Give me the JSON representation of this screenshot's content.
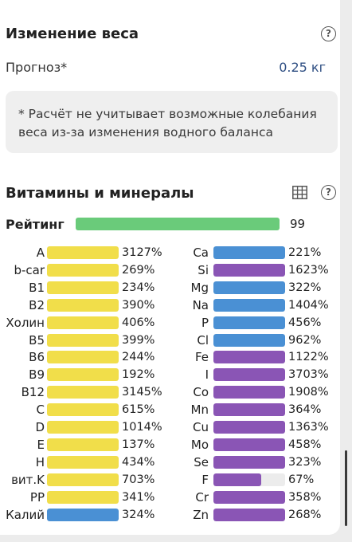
{
  "weight": {
    "title": "Изменение веса",
    "forecast_label": "Прогноз*",
    "forecast_value": "0.25 кг",
    "note": "* Расчёт не учитывает возможные колебания веса из-за изменения водного баланса"
  },
  "vitamins": {
    "title": "Витамины и минералы",
    "rating_label": "Рейтинг",
    "rating_value": "99",
    "rating_color": "#6acb7a"
  },
  "icons": {
    "help": "help-circle-icon",
    "table": "table-icon"
  },
  "colors": {
    "yellow": "#f1de4a",
    "blue": "#4a90d4",
    "purple": "#8a55b5",
    "track": "#ececec"
  },
  "left_items": [
    {
      "label": "A",
      "value": "3127%",
      "fill": 1.0,
      "color": "yellow"
    },
    {
      "label": "b-car",
      "value": "269%",
      "fill": 1.0,
      "color": "yellow"
    },
    {
      "label": "B1",
      "value": "234%",
      "fill": 1.0,
      "color": "yellow"
    },
    {
      "label": "B2",
      "value": "390%",
      "fill": 1.0,
      "color": "yellow"
    },
    {
      "label": "Холин",
      "value": "406%",
      "fill": 1.0,
      "color": "yellow"
    },
    {
      "label": "B5",
      "value": "399%",
      "fill": 1.0,
      "color": "yellow"
    },
    {
      "label": "B6",
      "value": "244%",
      "fill": 1.0,
      "color": "yellow"
    },
    {
      "label": "B9",
      "value": "192%",
      "fill": 1.0,
      "color": "yellow"
    },
    {
      "label": "B12",
      "value": "3145%",
      "fill": 1.0,
      "color": "yellow"
    },
    {
      "label": "C",
      "value": "615%",
      "fill": 1.0,
      "color": "yellow"
    },
    {
      "label": "D",
      "value": "1014%",
      "fill": 1.0,
      "color": "yellow"
    },
    {
      "label": "E",
      "value": "137%",
      "fill": 1.0,
      "color": "yellow"
    },
    {
      "label": "H",
      "value": "434%",
      "fill": 1.0,
      "color": "yellow"
    },
    {
      "label": "вит.K",
      "value": "703%",
      "fill": 1.0,
      "color": "yellow"
    },
    {
      "label": "PP",
      "value": "341%",
      "fill": 1.0,
      "color": "yellow"
    },
    {
      "label": "Калий",
      "value": "324%",
      "fill": 1.0,
      "color": "blue"
    }
  ],
  "right_items": [
    {
      "label": "Ca",
      "value": "221%",
      "fill": 1.0,
      "color": "blue"
    },
    {
      "label": "Si",
      "value": "1623%",
      "fill": 1.0,
      "color": "purple"
    },
    {
      "label": "Mg",
      "value": "322%",
      "fill": 1.0,
      "color": "blue"
    },
    {
      "label": "Na",
      "value": "1404%",
      "fill": 1.0,
      "color": "blue"
    },
    {
      "label": "P",
      "value": "456%",
      "fill": 1.0,
      "color": "blue"
    },
    {
      "label": "Cl",
      "value": "962%",
      "fill": 1.0,
      "color": "blue"
    },
    {
      "label": "Fe",
      "value": "1122%",
      "fill": 1.0,
      "color": "purple"
    },
    {
      "label": "I",
      "value": "3703%",
      "fill": 1.0,
      "color": "purple"
    },
    {
      "label": "Co",
      "value": "1908%",
      "fill": 1.0,
      "color": "purple"
    },
    {
      "label": "Mn",
      "value": "364%",
      "fill": 1.0,
      "color": "purple"
    },
    {
      "label": "Cu",
      "value": "1363%",
      "fill": 1.0,
      "color": "purple"
    },
    {
      "label": "Mo",
      "value": "458%",
      "fill": 1.0,
      "color": "purple"
    },
    {
      "label": "Se",
      "value": "323%",
      "fill": 1.0,
      "color": "purple"
    },
    {
      "label": "F",
      "value": "67%",
      "fill": 0.67,
      "color": "purple"
    },
    {
      "label": "Cr",
      "value": "358%",
      "fill": 1.0,
      "color": "purple"
    },
    {
      "label": "Zn",
      "value": "268%",
      "fill": 1.0,
      "color": "purple"
    }
  ]
}
